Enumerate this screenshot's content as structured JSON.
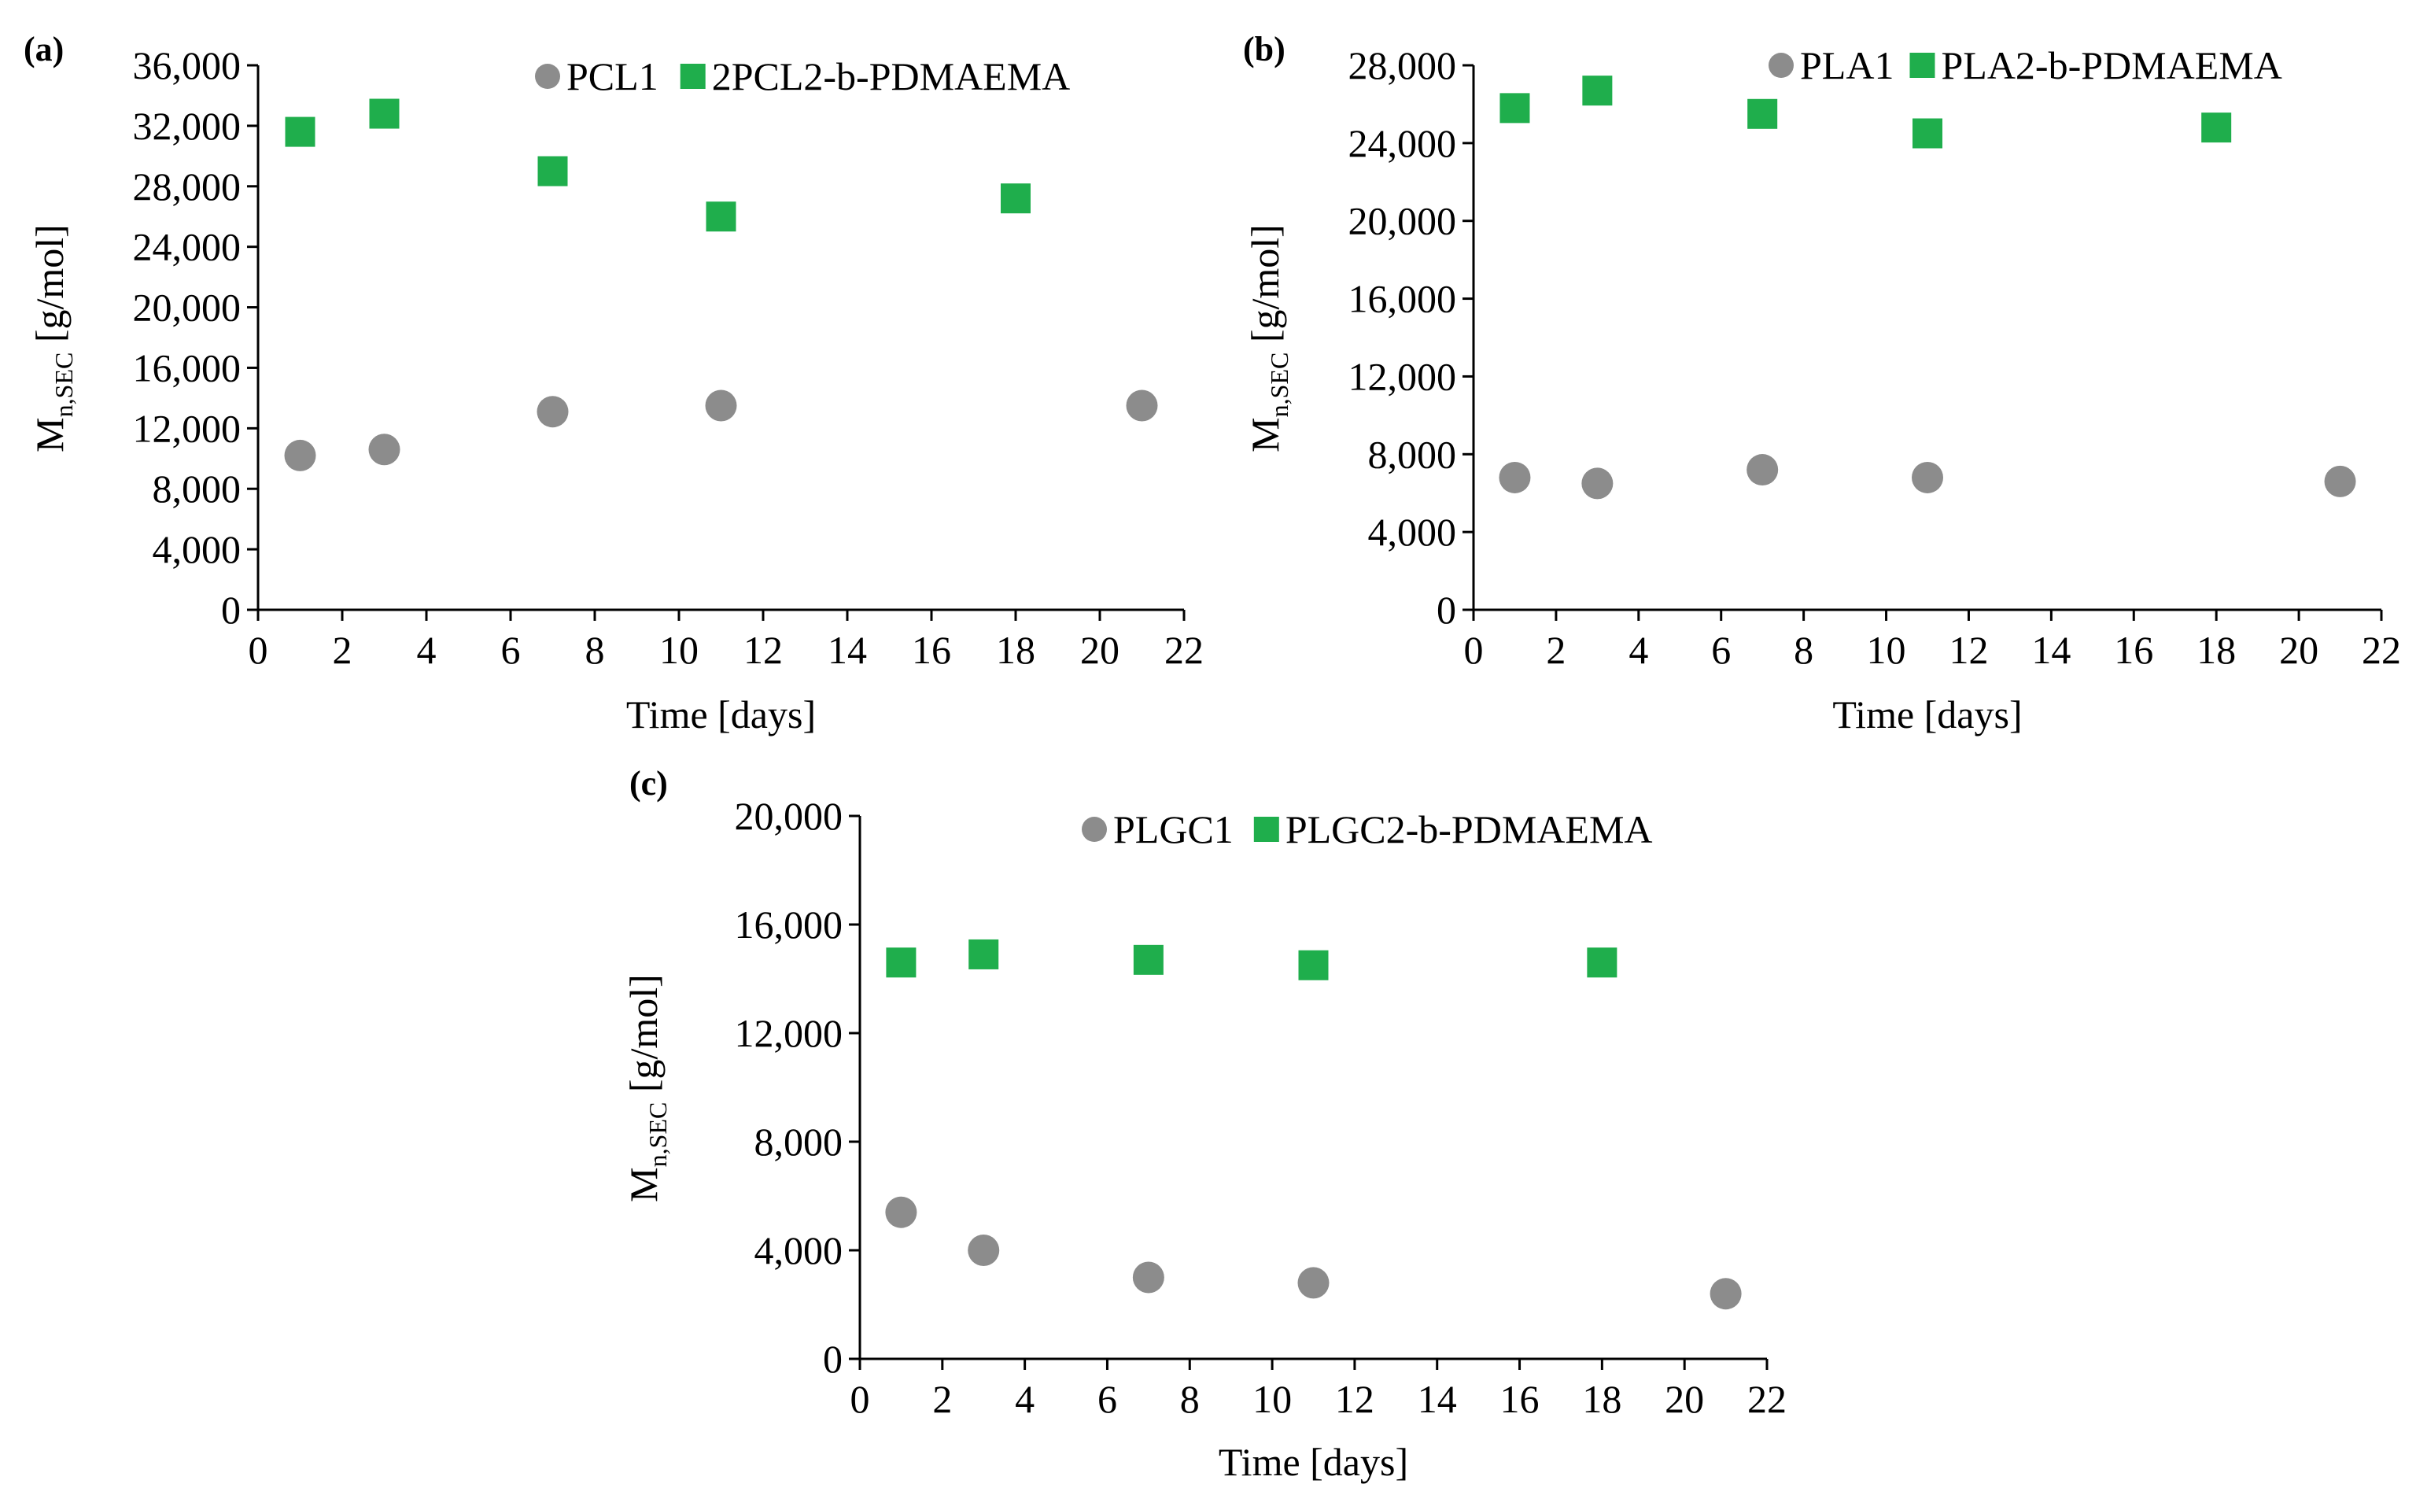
{
  "colors": {
    "gray": "#8c8c8c",
    "green": "#1fae4c",
    "axis": "#000000"
  },
  "chart_data": [
    {
      "type": "scatter",
      "panel_label": "(a)",
      "xlabel": "Time  [days]",
      "ylabel_main": "M",
      "ylabel_sub": "n,SEC",
      "ylabel_rest": " [g/mol]",
      "xlim": [
        0,
        22
      ],
      "ylim": [
        0,
        36000
      ],
      "xticks": [
        0,
        2,
        4,
        6,
        8,
        10,
        12,
        14,
        16,
        18,
        20,
        22
      ],
      "yticks": [
        0,
        4000,
        8000,
        12000,
        16000,
        20000,
        24000,
        28000,
        32000,
        36000
      ],
      "ytick_labels": [
        "0",
        "4,000",
        "8,000",
        "12,000",
        "16,000",
        "20,000",
        "24,000",
        "28,000",
        "32,000",
        "36,000"
      ],
      "series": [
        {
          "name": "PCL1",
          "marker": "circle",
          "color": "#8c8c8c",
          "x": [
            1,
            3,
            7,
            11,
            21
          ],
          "y": [
            10200,
            10600,
            13100,
            13500,
            13500
          ]
        },
        {
          "name": "2PCL2-b-PDMAEMA",
          "marker": "square",
          "color": "#1fae4c",
          "x": [
            1,
            3,
            7,
            11,
            18
          ],
          "y": [
            31600,
            32800,
            29000,
            26000,
            27200
          ]
        }
      ]
    },
    {
      "type": "scatter",
      "panel_label": "(b)",
      "xlabel": "Time  [days]",
      "ylabel_main": "M",
      "ylabel_sub": "n,SEC",
      "ylabel_rest": " [g/mol]",
      "xlim": [
        0,
        22
      ],
      "ylim": [
        0,
        28000
      ],
      "xticks": [
        0,
        2,
        4,
        6,
        8,
        10,
        12,
        14,
        16,
        18,
        20,
        22
      ],
      "yticks": [
        0,
        4000,
        8000,
        12000,
        16000,
        20000,
        24000,
        28000
      ],
      "ytick_labels": [
        "0",
        "4,000",
        "8,000",
        "12,000",
        "16,000",
        "20,000",
        "24,000",
        "28,000"
      ],
      "series": [
        {
          "name": "PLA1",
          "marker": "circle",
          "color": "#8c8c8c",
          "x": [
            1,
            3,
            7,
            11,
            21
          ],
          "y": [
            6800,
            6500,
            7200,
            6800,
            6600
          ]
        },
        {
          "name": "PLA2-b-PDMAEMA",
          "marker": "square",
          "color": "#1fae4c",
          "x": [
            1,
            3,
            7,
            11,
            18
          ],
          "y": [
            25800,
            26700,
            25500,
            24500,
            24800
          ]
        }
      ]
    },
    {
      "type": "scatter",
      "panel_label": "(c)",
      "xlabel": "Time  [days]",
      "ylabel_main": "M",
      "ylabel_sub": "n,SEC",
      "ylabel_rest": " [g/mol]",
      "xlim": [
        0,
        22
      ],
      "ylim": [
        0,
        20000
      ],
      "xticks": [
        0,
        2,
        4,
        6,
        8,
        10,
        12,
        14,
        16,
        18,
        20,
        22
      ],
      "yticks": [
        0,
        4000,
        8000,
        12000,
        16000,
        20000
      ],
      "ytick_labels": [
        "0",
        "4,000",
        "8,000",
        "12,000",
        "16,000",
        "20,000"
      ],
      "series": [
        {
          "name": "PLGC1",
          "marker": "circle",
          "color": "#8c8c8c",
          "x": [
            1,
            3,
            7,
            11,
            21
          ],
          "y": [
            5400,
            4000,
            3000,
            2800,
            2400
          ]
        },
        {
          "name": "PLGC2-b-PDMAEMA",
          "marker": "square",
          "color": "#1fae4c",
          "x": [
            1,
            3,
            7,
            11,
            18
          ],
          "y": [
            14600,
            14900,
            14700,
            14500,
            14600
          ]
        }
      ]
    }
  ]
}
